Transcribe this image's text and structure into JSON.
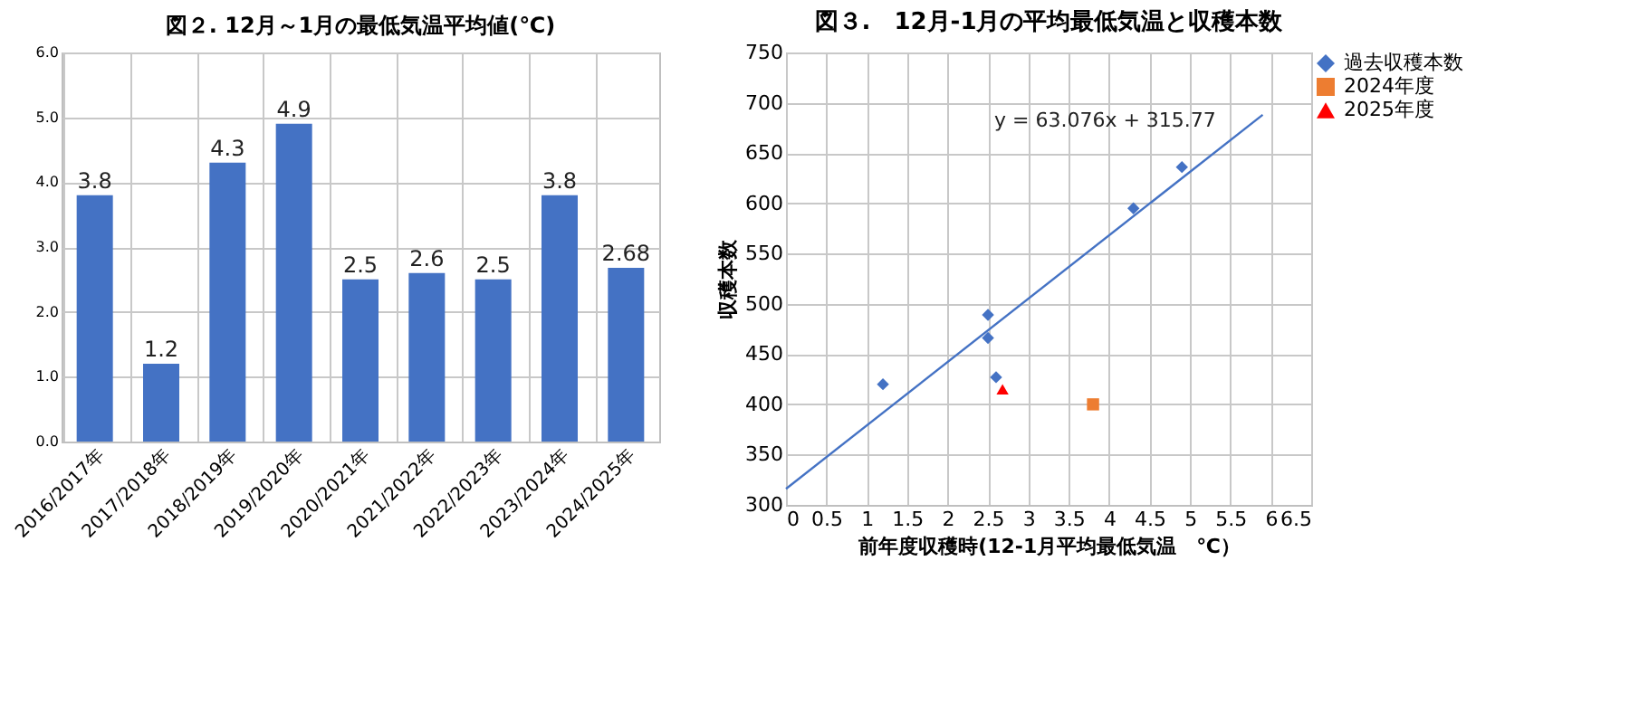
{
  "chart_data": [
    {
      "type": "bar",
      "title": "図２. 12月～1月の最低気温平均値(℃)",
      "categories": [
        "2016/2017年",
        "2017/2018年",
        "2018/2019年",
        "2019/2020年",
        "2020/2021年",
        "2021/2022年",
        "2022/2023年",
        "2023/2024年",
        "2024/2025年"
      ],
      "values": [
        3.8,
        1.2,
        4.3,
        4.9,
        2.5,
        2.6,
        2.5,
        3.8,
        2.68
      ],
      "color": "#4472c4",
      "ylim": [
        0,
        6
      ],
      "yticks": [
        {
          "value": 0,
          "label": "0.0"
        },
        {
          "value": 1,
          "label": "1.0"
        },
        {
          "value": 2,
          "label": "2.0"
        },
        {
          "value": 3,
          "label": "3.0"
        },
        {
          "value": 4,
          "label": "4.0"
        },
        {
          "value": 5,
          "label": "5.0"
        },
        {
          "value": 6,
          "label": "6.0"
        }
      ],
      "data_labels": true,
      "grid": true
    },
    {
      "type": "scatter",
      "title": "図３.　12月-1月の平均最低気温と収穫本数",
      "xlabel": "前年度収穫時(12-1月平均最低気温　℃）",
      "ylabel": "収穫本数",
      "xlim": [
        0,
        6.5
      ],
      "xticks": [
        0,
        0.5,
        1,
        1.5,
        2,
        2.5,
        3,
        3.5,
        4,
        4.5,
        5,
        5.5,
        6,
        6.5
      ],
      "ylim": [
        300,
        750
      ],
      "yticks": [
        300,
        350,
        400,
        450,
        500,
        550,
        600,
        650,
        700,
        750
      ],
      "grid": true,
      "legend": "right",
      "series": [
        {
          "name": "過去収穫本数",
          "color": "#4472c4",
          "marker": "diamond",
          "x": [
            1.2,
            2.5,
            2.5,
            2.6,
            4.3,
            4.9
          ],
          "values": [
            420,
            489,
            466,
            427,
            595,
            636
          ]
        },
        {
          "name": "2024年度",
          "color": "#ed7d31",
          "marker": "square",
          "x": [
            3.8
          ],
          "values": [
            400
          ]
        },
        {
          "name": "2025年度",
          "color": "#ff0000",
          "marker": "triangle",
          "x": [
            2.68
          ],
          "values": [
            415
          ]
        },
        {
          "type": "line",
          "color": "#4472c4",
          "x": [
            0,
            5.9
          ],
          "values": [
            316,
            688
          ]
        }
      ],
      "annotations": [
        "y = 63.076x + 315.77"
      ]
    }
  ]
}
